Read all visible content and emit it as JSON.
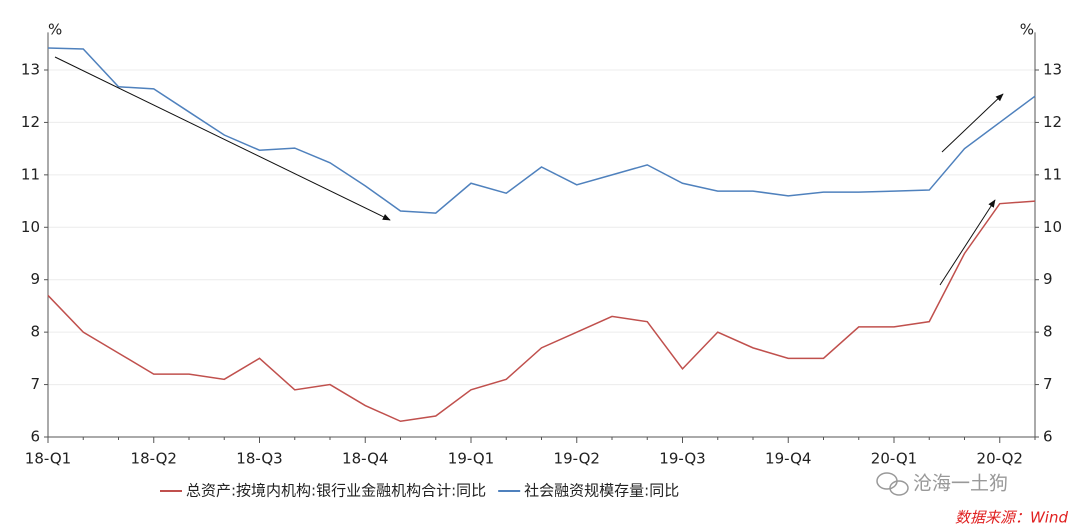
{
  "chart_data": {
    "type": "line",
    "y_unit": "%",
    "y2_unit": "%",
    "categories": [
      "18-Q1",
      null,
      null,
      "18-Q2",
      null,
      null,
      "18-Q3",
      null,
      null,
      "18-Q4",
      null,
      null,
      "19-Q1",
      null,
      null,
      "19-Q2",
      null,
      null,
      "19-Q3",
      null,
      null,
      "19-Q4",
      null,
      null,
      "20-Q1",
      null,
      null,
      "20-Q2",
      null
    ],
    "series": [
      {
        "name": "总资产:按境内机构:银行业金融机构合计:同比",
        "color": "#c0504d",
        "values": [
          8.7,
          8.0,
          7.6,
          7.2,
          7.2,
          7.1,
          7.5,
          6.9,
          7.0,
          6.6,
          6.3,
          6.4,
          6.9,
          7.1,
          7.7,
          8.0,
          8.3,
          8.2,
          7.3,
          8.0,
          7.7,
          7.5,
          7.5,
          8.1,
          8.1,
          8.2,
          9.5,
          10.45,
          10.5
        ]
      },
      {
        "name": "社会融资规模存量:同比",
        "color": "#4f81bd",
        "values": [
          13.42,
          13.4,
          12.68,
          12.64,
          12.2,
          11.76,
          11.47,
          11.51,
          11.23,
          10.79,
          10.31,
          10.27,
          10.84,
          10.65,
          11.15,
          10.81,
          11.0,
          11.19,
          10.84,
          10.69,
          10.69,
          10.6,
          10.67,
          10.67,
          10.69,
          10.71,
          11.5,
          12.0,
          12.5
        ]
      }
    ],
    "ylim": [
      6,
      13.45
    ],
    "yticks": [
      6,
      7,
      8,
      9,
      10,
      11,
      12,
      13
    ],
    "y2lim": [
      6,
      13.45
    ],
    "y2ticks": [
      6,
      7,
      8,
      9,
      10,
      11,
      12,
      13
    ],
    "grid": true,
    "legend": "bottom",
    "watermark": "沧海一土狗",
    "source": "数据来源：Wind"
  }
}
